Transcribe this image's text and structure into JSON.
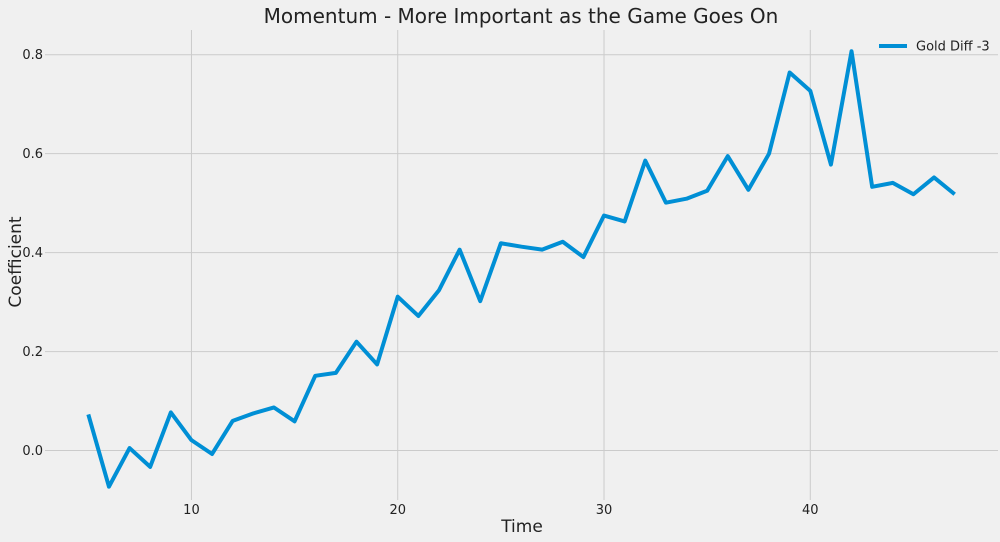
{
  "chart_data": {
    "type": "line",
    "title": "Momentum - More Important as the Game Goes On",
    "xlabel": "Time",
    "ylabel": "Coefficient",
    "xlim": [
      2.9,
      49.1
    ],
    "ylim": [
      -0.1,
      0.85
    ],
    "xticks": [
      10,
      20,
      30,
      40
    ],
    "yticks": [
      0.0,
      0.2,
      0.4,
      0.6,
      0.8
    ],
    "ytick_labels": [
      "0.0",
      "0.2",
      "0.4",
      "0.6",
      "0.8"
    ],
    "grid": true,
    "legend": {
      "position": "top-right"
    },
    "series": [
      {
        "name": "Gold Diff -3",
        "color": "#008fd5",
        "x": [
          5,
          6,
          7,
          8,
          9,
          10,
          11,
          12,
          13,
          14,
          15,
          16,
          17,
          18,
          19,
          20,
          21,
          22,
          23,
          24,
          25,
          26,
          27,
          28,
          29,
          30,
          31,
          32,
          33,
          34,
          35,
          36,
          37,
          38,
          39,
          40,
          41,
          42,
          43,
          44,
          45,
          46,
          47
        ],
        "y": [
          0.073,
          -0.073,
          0.005,
          -0.033,
          0.077,
          0.021,
          -0.007,
          0.06,
          0.075,
          0.087,
          0.059,
          0.151,
          0.157,
          0.22,
          0.174,
          0.311,
          0.272,
          0.324,
          0.406,
          0.302,
          0.419,
          0.412,
          0.406,
          0.422,
          0.391,
          0.475,
          0.463,
          0.586,
          0.501,
          0.509,
          0.525,
          0.595,
          0.527,
          0.6,
          0.764,
          0.727,
          0.578,
          0.807,
          0.533,
          0.541,
          0.518,
          0.552,
          0.518
        ]
      }
    ]
  }
}
